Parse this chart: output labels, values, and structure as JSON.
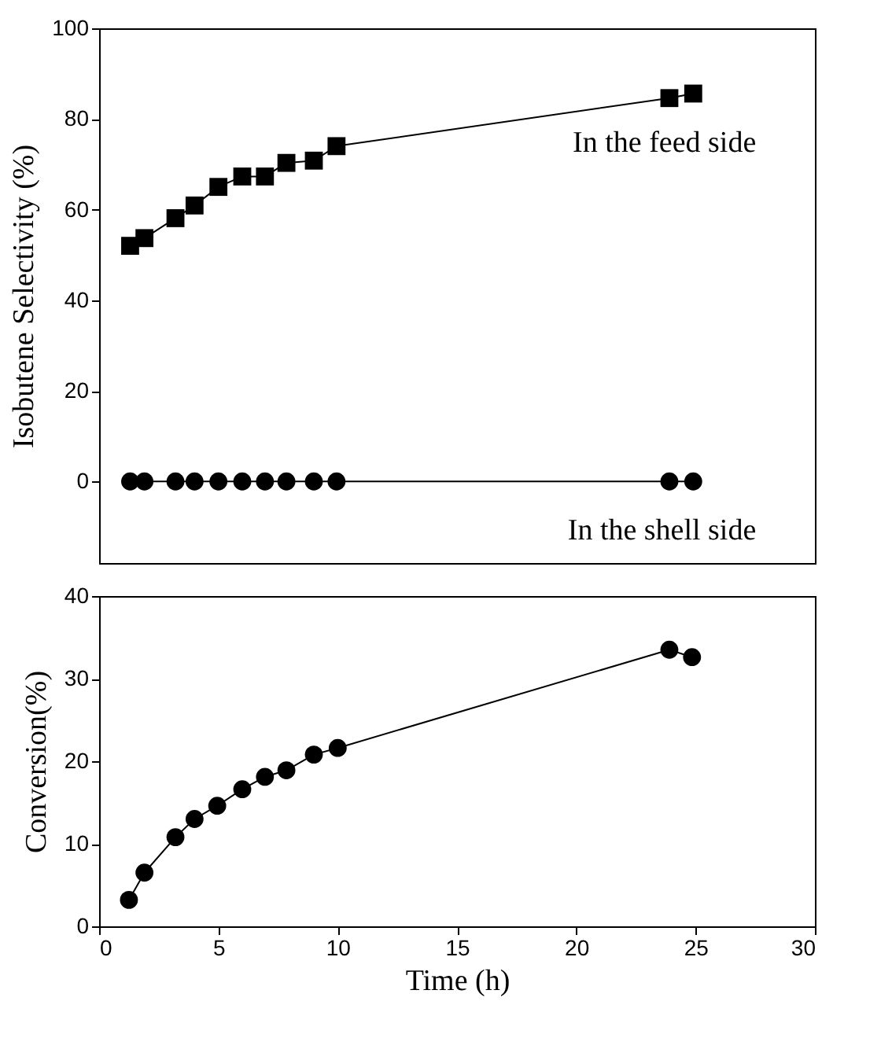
{
  "chart_data": [
    {
      "type": "line",
      "ylabel": "Isobutene Selectivity (%)",
      "xlim": [
        0,
        30
      ],
      "ylim": [
        -18,
        100
      ],
      "yticks": [
        0,
        20,
        40,
        60,
        80,
        100
      ],
      "tick_labels": "y",
      "grid": false,
      "line_style": "solid",
      "series": [
        {
          "name": "In the feed side",
          "color": "#000000",
          "marker": "square",
          "x": [
            1.3,
            1.9,
            3.2,
            4.0,
            5.0,
            6.0,
            6.95,
            7.85,
            9.0,
            9.95,
            23.9,
            24.9
          ],
          "values": [
            52,
            53.7,
            58.1,
            60.9,
            65,
            67.3,
            67.3,
            70.3,
            70.8,
            74,
            84.6,
            85.6
          ]
        },
        {
          "name": "In the shell side",
          "color": "#000000",
          "marker": "circle",
          "x": [
            1.3,
            1.9,
            3.2,
            4.0,
            5.0,
            6.0,
            6.95,
            7.85,
            9.0,
            9.95,
            23.9,
            24.9
          ],
          "values": [
            0,
            0,
            0,
            0,
            0,
            0,
            0,
            0,
            0,
            0,
            0,
            0
          ]
        }
      ]
    },
    {
      "type": "line",
      "xlabel": "Time (h)",
      "ylabel": "Conversion(%)",
      "xlim": [
        0,
        30
      ],
      "xticks": [
        0,
        5,
        10,
        15,
        20,
        25,
        30
      ],
      "ylim": [
        0,
        40
      ],
      "yticks": [
        0,
        10,
        20,
        30,
        40
      ],
      "grid": false,
      "line_style": "solid",
      "marker": "circle",
      "series": [
        {
          "color": "#000000",
          "x": [
            1.25,
            1.9,
            3.2,
            4.0,
            4.95,
            6.0,
            6.95,
            7.85,
            9.0,
            10.0,
            23.9,
            24.85
          ],
          "values": [
            3.2,
            6.5,
            10.8,
            13,
            14.6,
            16.6,
            18.1,
            18.9,
            20.8,
            21.6,
            33.5,
            32.6
          ]
        }
      ]
    }
  ]
}
